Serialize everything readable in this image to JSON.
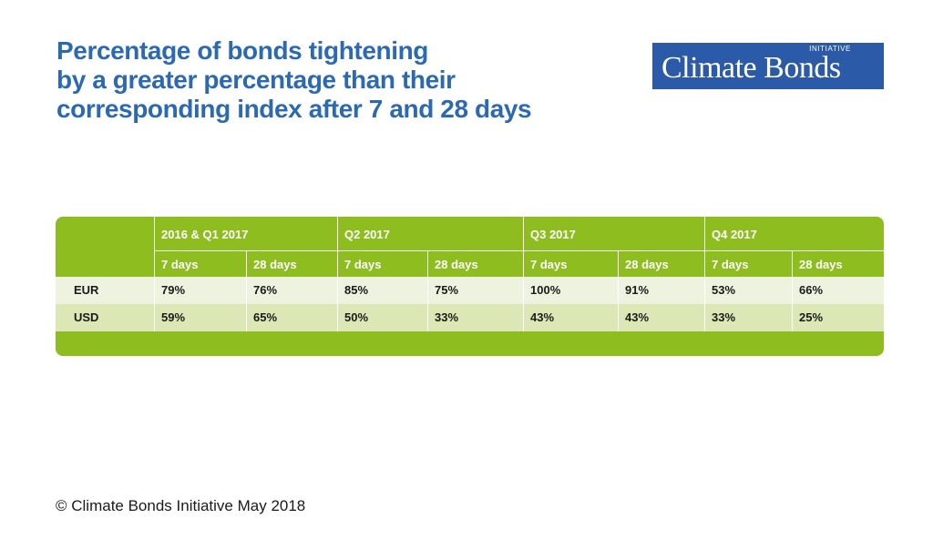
{
  "title": {
    "line1": "Percentage of bonds tightening",
    "line2": "by a greater percentage than their",
    "line3": "corresponding index after 7 and 28 days"
  },
  "logo": {
    "tag": "INITIATIVE",
    "name": "Climate Bonds"
  },
  "colors": {
    "title": "#2b6ab2",
    "logo_bg": "#2b5aa8",
    "table_green": "#8dbd1f",
    "row_eur": "#eef3df",
    "row_usd": "#dbe8b6"
  },
  "chart_data": {
    "type": "table",
    "groups": [
      "2016 & Q1 2017",
      "Q2 2017",
      "Q3 2017",
      "Q4 2017"
    ],
    "subheaders": [
      "7 days",
      "28 days",
      "7 days",
      "28 days",
      "7 days",
      "28 days",
      "7 days",
      "28 days"
    ],
    "rows": [
      {
        "label": "EUR",
        "values": [
          "79%",
          "76%",
          "85%",
          "75%",
          "100%",
          "91%",
          "53%",
          "66%"
        ]
      },
      {
        "label": "USD",
        "values": [
          "59%",
          "65%",
          "50%",
          "33%",
          "43%",
          "43%",
          "33%",
          "25%"
        ]
      }
    ]
  },
  "footer": "© Climate Bonds Initiative May 2018"
}
